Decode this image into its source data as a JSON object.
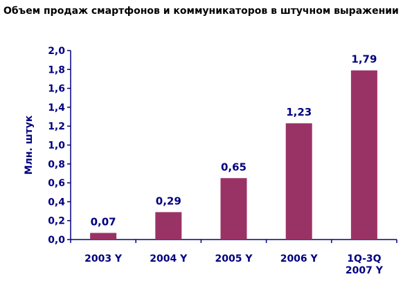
{
  "chart_data": {
    "type": "bar",
    "title": "Объем продаж смартфонов и коммуникаторов в штучном выражении",
    "ylabel": "Млн. штук",
    "xlabel": "",
    "categories": [
      [
        "2003 Y"
      ],
      [
        "2004 Y"
      ],
      [
        "2005 Y"
      ],
      [
        "2006 Y"
      ],
      [
        "1Q-3Q",
        "2007 Y"
      ]
    ],
    "values": [
      0.07,
      0.29,
      0.65,
      1.23,
      1.79
    ],
    "data_labels": [
      "0,07",
      "0,29",
      "0,65",
      "1,23",
      "1,79"
    ],
    "ylim": [
      0,
      2.0
    ],
    "yticks": [
      "0,0",
      "0,2",
      "0,4",
      "0,6",
      "0,8",
      "1,0",
      "1,2",
      "1,4",
      "1,6",
      "1,8",
      "2,0"
    ],
    "grid": false,
    "legend": "none",
    "colors": {
      "bar": "#993366",
      "axis": "#000080",
      "text": "#000080",
      "title": "#000000"
    }
  }
}
